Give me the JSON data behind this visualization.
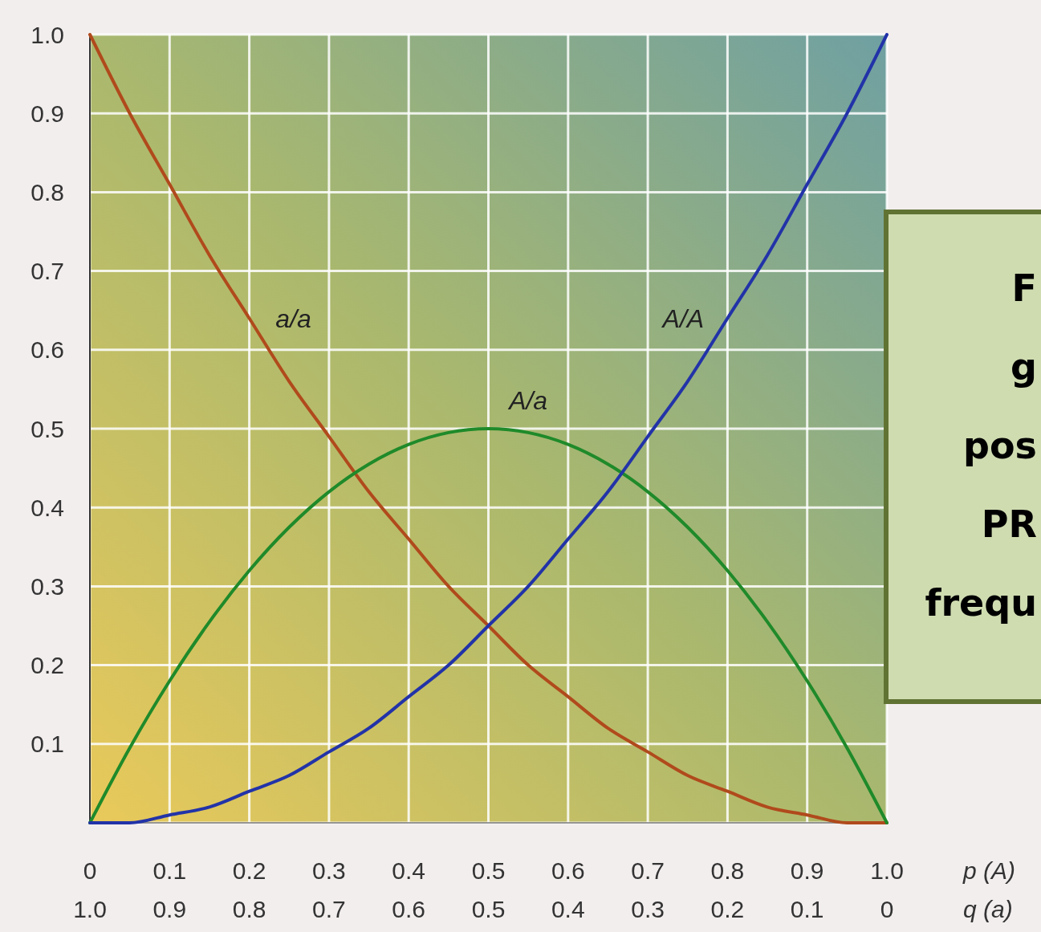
{
  "chart_data": {
    "type": "line",
    "xlabel": "p (A)",
    "x2label": "q (a)",
    "xlim": [
      0,
      1
    ],
    "xticks": [
      0,
      0.1,
      0.2,
      0.3,
      0.4,
      0.5,
      0.6,
      0.7,
      0.8,
      0.9,
      {
        "value": 1,
        "label": "1.0"
      }
    ],
    "x2lim": [
      1,
      0
    ],
    "x2ticks": [
      {
        "value": 1,
        "label": "1.0"
      },
      0.9,
      0.8,
      0.7,
      0.6,
      0.5,
      0.4,
      0.3,
      0.2,
      0.1,
      0
    ],
    "ylim": [
      0,
      1
    ],
    "yticks": [
      {
        "value": 0,
        "label": null
      },
      0.1,
      0.2,
      0.3,
      0.4,
      0.5,
      0.6,
      0.7,
      0.8,
      0.9,
      {
        "value": 1,
        "label": "1.0"
      }
    ],
    "grid": true,
    "marker": "none",
    "line_style": "solid",
    "x": [
      0,
      0.05,
      0.1,
      0.15,
      0.2,
      0.25,
      0.3,
      0.35,
      0.4,
      0.45,
      0.5,
      0.55,
      0.6,
      0.65,
      0.7,
      0.75,
      0.8,
      0.85,
      0.9,
      0.95,
      1
    ],
    "series": [
      {
        "name": "a/a",
        "color": "#b04a1c",
        "values": [
          1,
          0.9,
          0.81,
          0.72,
          0.64,
          0.56,
          0.49,
          0.42,
          0.36,
          0.3,
          0.25,
          0.2,
          0.16,
          0.12,
          0.09,
          0.06,
          0.04,
          0.02,
          0.01,
          0,
          0
        ]
      },
      {
        "name": "A/a",
        "color": "#1f8a2a",
        "values": [
          0,
          0.095,
          0.18,
          0.255,
          0.32,
          0.375,
          0.42,
          0.455,
          0.48,
          0.495,
          0.5,
          0.495,
          0.48,
          0.455,
          0.42,
          0.375,
          0.32,
          0.255,
          0.18,
          0.095,
          0
        ]
      },
      {
        "name": "A/A",
        "color": "#2233a8",
        "values": [
          0,
          0,
          0.01,
          0.02,
          0.04,
          0.06,
          0.09,
          0.12,
          0.16,
          0.2,
          0.25,
          0.3,
          0.36,
          0.42,
          0.49,
          0.56,
          0.64,
          0.72,
          0.81,
          0.9,
          1
        ]
      }
    ],
    "annotations": [
      "F",
      "g",
      "pos",
      "PR",
      "frequ"
    ]
  }
}
